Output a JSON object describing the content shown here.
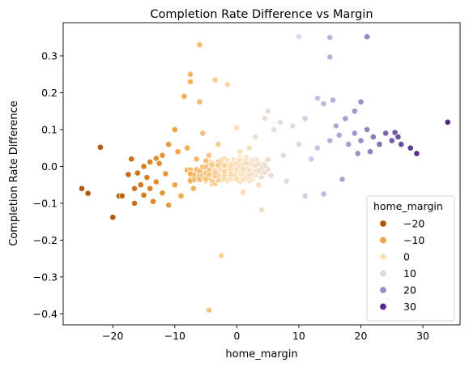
{
  "chart_data": {
    "type": "scatter",
    "title": "Completion Rate Difference vs Margin",
    "xlabel": "home_margin",
    "ylabel": "Completion Rate Difference",
    "xlim": [
      -28,
      36
    ],
    "ylim": [
      -0.43,
      0.39
    ],
    "xticks": [
      -20,
      -10,
      0,
      10,
      20,
      30
    ],
    "xtick_labels": [
      "−20",
      "−10",
      "0",
      "10",
      "20",
      "30"
    ],
    "yticks": [
      -0.4,
      -0.3,
      -0.2,
      -0.1,
      0.0,
      0.1,
      0.2,
      0.3
    ],
    "ytick_labels": [
      "−0.4",
      "−0.3",
      "−0.2",
      "−0.1",
      "0.0",
      "0.1",
      "0.2",
      "0.3"
    ],
    "grid": false,
    "hue_variable": "home_margin",
    "colormap": "PuOr",
    "legend": {
      "title": "home_margin",
      "placement": "lower right",
      "entries": [
        {
          "label": "−20",
          "color": "#b35806"
        },
        {
          "label": "−10",
          "color": "#f1a340"
        },
        {
          "label": "0",
          "color": "#fee0b6"
        },
        {
          "label": "10",
          "color": "#d8daeb"
        },
        {
          "label": "20",
          "color": "#998ec3"
        },
        {
          "label": "30",
          "color": "#542788"
        }
      ]
    },
    "points": [
      [
        -25.0,
        -0.06
      ],
      [
        -24.0,
        -0.073
      ],
      [
        -22.0,
        0.052
      ],
      [
        -20.0,
        -0.138
      ],
      [
        -19.0,
        -0.08
      ],
      [
        -18.5,
        -0.08
      ],
      [
        -17.5,
        -0.022
      ],
      [
        -17.0,
        0.02
      ],
      [
        -16.5,
        -0.06
      ],
      [
        -16.5,
        -0.1
      ],
      [
        -16.0,
        -0.018
      ],
      [
        -15.5,
        -0.05
      ],
      [
        -15.0,
        0.0
      ],
      [
        -15.0,
        -0.078
      ],
      [
        -14.5,
        -0.03
      ],
      [
        -14.0,
        0.012
      ],
      [
        -14.0,
        -0.06
      ],
      [
        -13.5,
        -0.095
      ],
      [
        -13.0,
        0.022
      ],
      [
        -13.0,
        -0.042
      ],
      [
        -12.5,
        0.008
      ],
      [
        -12.0,
        -0.072
      ],
      [
        -12.0,
        0.03
      ],
      [
        -11.5,
        -0.02
      ],
      [
        -11.0,
        0.06
      ],
      [
        -11.0,
        -0.105
      ],
      [
        -10.0,
        0.1
      ],
      [
        -10.0,
        -0.05
      ],
      [
        -9.5,
        0.04
      ],
      [
        -9.0,
        -0.08
      ],
      [
        -8.5,
        0.19
      ],
      [
        -8.0,
        0.05
      ],
      [
        -8.0,
        -0.01
      ],
      [
        -7.5,
        0.25
      ],
      [
        -7.5,
        0.23
      ],
      [
        -7.0,
        -0.06
      ],
      [
        -6.5,
        0.02
      ],
      [
        -6.0,
        0.33
      ],
      [
        -6.0,
        0.175
      ],
      [
        -5.5,
        0.09
      ],
      [
        -5.0,
        -0.04
      ],
      [
        -4.5,
        0.03
      ],
      [
        -4.5,
        -0.39
      ],
      [
        -3.5,
        0.235
      ],
      [
        -3.0,
        0.06
      ],
      [
        -2.5,
        -0.242
      ],
      [
        -2.0,
        0.02
      ],
      [
        -1.5,
        0.222
      ],
      [
        -1.0,
        -0.01
      ],
      [
        0.0,
        0.105
      ],
      [
        0.5,
        0.04
      ],
      [
        1.0,
        -0.07
      ],
      [
        1.5,
        -0.02
      ],
      [
        2.0,
        0.05
      ],
      [
        2.5,
        0.0
      ],
      [
        3.0,
        0.08
      ],
      [
        3.5,
        -0.05
      ],
      [
        4.0,
        -0.118
      ],
      [
        4.5,
        0.13
      ],
      [
        5.0,
        0.15
      ],
      [
        5.5,
        -0.025
      ],
      [
        6.0,
        0.1
      ],
      [
        7.0,
        0.12
      ],
      [
        7.5,
        0.03
      ],
      [
        8.0,
        -0.04
      ],
      [
        9.0,
        0.11
      ],
      [
        10.0,
        0.352
      ],
      [
        10.0,
        0.06
      ],
      [
        11.0,
        0.13
      ],
      [
        11.0,
        -0.08
      ],
      [
        12.0,
        0.02
      ],
      [
        13.0,
        0.185
      ],
      [
        13.0,
        0.05
      ],
      [
        14.0,
        0.17
      ],
      [
        14.0,
        -0.075
      ],
      [
        15.0,
        0.35
      ],
      [
        15.0,
        0.297
      ],
      [
        15.0,
        0.07
      ],
      [
        15.5,
        0.18
      ],
      [
        16.0,
        0.11
      ],
      [
        16.5,
        0.085
      ],
      [
        17.0,
        -0.035
      ],
      [
        17.5,
        0.13
      ],
      [
        18.0,
        0.06
      ],
      [
        19.0,
        0.15
      ],
      [
        19.0,
        0.09
      ],
      [
        19.5,
        0.035
      ],
      [
        20.0,
        0.175
      ],
      [
        20.0,
        0.07
      ],
      [
        21.0,
        0.352
      ],
      [
        21.0,
        0.1
      ],
      [
        21.5,
        0.04
      ],
      [
        22.0,
        0.08
      ],
      [
        23.0,
        0.06
      ],
      [
        24.0,
        0.09
      ],
      [
        25.0,
        0.07
      ],
      [
        25.5,
        0.092
      ],
      [
        26.0,
        0.08
      ],
      [
        26.5,
        0.06
      ],
      [
        28.0,
        0.05
      ],
      [
        29.0,
        0.035
      ],
      [
        34.0,
        0.12
      ]
    ]
  }
}
